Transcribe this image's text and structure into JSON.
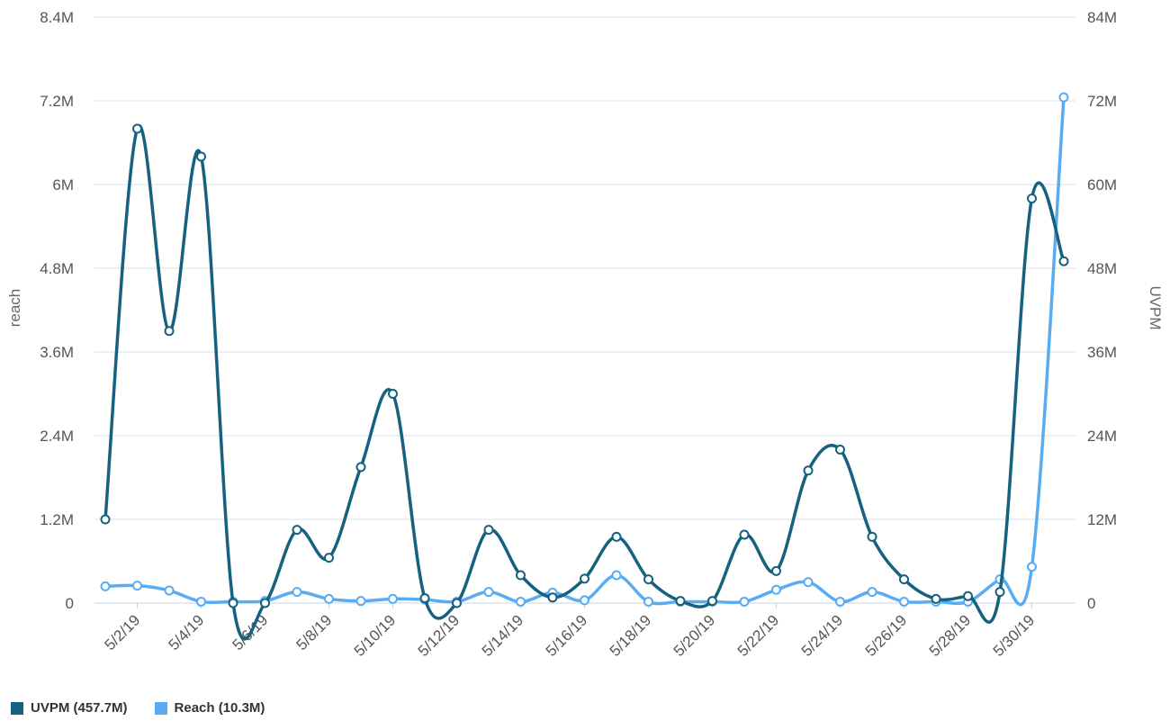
{
  "chart_data": {
    "type": "line",
    "x": [
      "5/1/19",
      "5/2/19",
      "5/3/19",
      "5/4/19",
      "5/5/19",
      "5/6/19",
      "5/7/19",
      "5/8/19",
      "5/9/19",
      "5/10/19",
      "5/11/19",
      "5/12/19",
      "5/13/19",
      "5/14/19",
      "5/15/19",
      "5/16/19",
      "5/17/19",
      "5/18/19",
      "5/19/19",
      "5/20/19",
      "5/21/19",
      "5/22/19",
      "5/23/19",
      "5/24/19",
      "5/25/19",
      "5/26/19",
      "5/27/19",
      "5/28/19",
      "5/29/19",
      "5/30/19",
      "5/31/19"
    ],
    "x_tick_labels": [
      "5/2/19",
      "5/4/19",
      "5/6/19",
      "5/8/19",
      "5/10/19",
      "5/12/19",
      "5/14/19",
      "5/16/19",
      "5/18/19",
      "5/20/19",
      "5/22/19",
      "5/24/19",
      "5/26/19",
      "5/28/19",
      "5/30/19"
    ],
    "left_axis": {
      "label": "reach",
      "ticks": [
        "0",
        "1.2M",
        "2.4M",
        "3.6M",
        "4.8M",
        "6M",
        "7.2M",
        "8.4M"
      ],
      "range": [
        0,
        8400000
      ]
    },
    "right_axis": {
      "label": "UVPM",
      "ticks": [
        "0",
        "12M",
        "24M",
        "36M",
        "48M",
        "60M",
        "72M",
        "84M"
      ],
      "range": [
        0,
        84000000
      ]
    },
    "series": [
      {
        "name": "UVPM",
        "legend": "UVPM (457.7M)",
        "color": "#15617f",
        "axis": "right",
        "values": [
          12000000,
          68000000,
          39000000,
          64000000,
          0,
          0,
          10500000,
          6500000,
          19500000,
          30000000,
          700000,
          0,
          10500000,
          4000000,
          800000,
          3500000,
          9500000,
          3400000,
          300000,
          300000,
          9800000,
          4600000,
          19000000,
          22000000,
          9500000,
          3400000,
          600000,
          1000000,
          1600000,
          58000000,
          49000000
        ]
      },
      {
        "name": "Reach",
        "legend": "Reach (10.3M)",
        "color": "#5aacf2",
        "axis": "left",
        "values": [
          240000,
          250000,
          180000,
          20000,
          20000,
          30000,
          160000,
          60000,
          30000,
          60000,
          50000,
          20000,
          160000,
          20000,
          150000,
          40000,
          400000,
          20000,
          20000,
          20000,
          20000,
          190000,
          300000,
          20000,
          160000,
          20000,
          20000,
          20000,
          340000,
          520000,
          7250000
        ]
      }
    ],
    "grid": true,
    "legend_position": "bottom-left"
  }
}
